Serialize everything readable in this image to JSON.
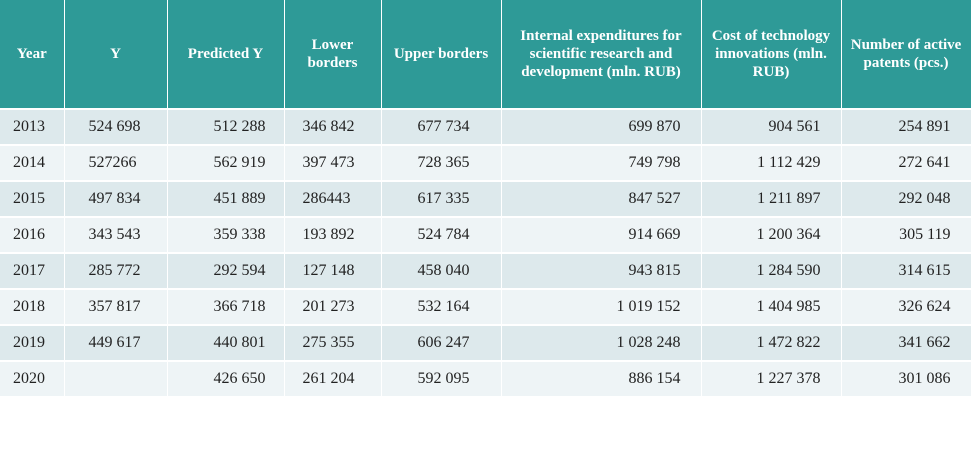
{
  "headers": [
    "Year",
    "Y",
    "Predicted Y",
    "Lower borders",
    "Upper borders",
    "Internal expenditures for scientific research and development (mln. RUB)",
    "Cost of technology innovations (mln. RUB)",
    "Number of active patents (pcs.)"
  ],
  "rows": [
    [
      "2013",
      "524 698",
      "512 288",
      "346 842",
      "677 734",
      "699 870",
      "904 561",
      "254 891"
    ],
    [
      "2014",
      "527266",
      "562 919",
      "397 473",
      "728 365",
      "749 798",
      "1 112 429",
      "272 641"
    ],
    [
      "2015",
      "497 834",
      "451 889",
      "286443",
      "617 335",
      "847 527",
      "1 211 897",
      "292 048"
    ],
    [
      "2016",
      "343 543",
      "359 338",
      "193 892",
      "524 784",
      "914 669",
      "1 200 364",
      "305 119"
    ],
    [
      "2017",
      "285 772",
      "292 594",
      "127 148",
      "458 040",
      "943 815",
      "1 284 590",
      "314 615"
    ],
    [
      "2018",
      "357 817",
      "366 718",
      "201 273",
      "532 164",
      "1 019 152",
      "1 404 985",
      "326 624"
    ],
    [
      "2019",
      "449 617",
      "440 801",
      "275 355",
      "606 247",
      "1 028 248",
      "1 472 822",
      "341 662"
    ],
    [
      "2020",
      "",
      "426 650",
      "261 204",
      "592 095",
      "886 154",
      "1 227 378",
      "301 086"
    ]
  ],
  "colors": {
    "header_bg": "#2e9a97",
    "row_odd": "#dde9ec",
    "row_even": "#eef4f6"
  }
}
